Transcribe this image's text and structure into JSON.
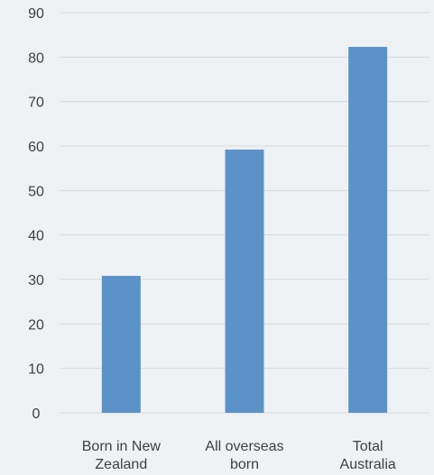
{
  "chart_data": {
    "type": "bar",
    "categories": [
      [
        "Born in New",
        "Zealand"
      ],
      [
        "All overseas",
        "born"
      ],
      [
        "Total",
        "Australia"
      ]
    ],
    "values": [
      30.8,
      59.2,
      82.3
    ],
    "ylim": [
      0,
      90
    ],
    "yticks": [
      0,
      10,
      20,
      30,
      40,
      50,
      60,
      70,
      80,
      90
    ],
    "bar_color": "#5b93c9",
    "grid_color": "#d9d9d9",
    "grid": true,
    "title": "",
    "xlabel": "",
    "ylabel": ""
  }
}
